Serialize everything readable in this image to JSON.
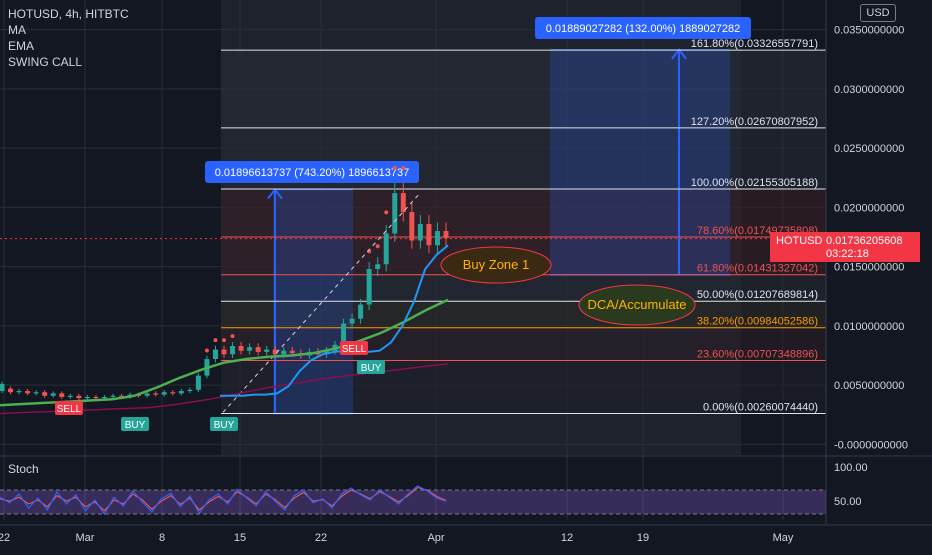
{
  "header": {
    "title": "HOTUSD, 4h, HITBTC",
    "indicators": [
      "MA",
      "EMA",
      "SWING CALL"
    ],
    "currency": "USD"
  },
  "price_tag": {
    "symbol": "HOTUSD",
    "price": "0.01736205608",
    "countdown": "03:22:18"
  },
  "colors": {
    "background": "#131722",
    "candle_up": "#26a69a",
    "candle_down": "#ef5350",
    "ma": "#26c6da",
    "ema": "#2962ff",
    "ema_long": "#4caf50",
    "fib_line": "#e0e3eb",
    "fib_red": "#ef5350",
    "fib_orange": "#ff9800",
    "measure_box": "#2962ff",
    "buy_zone": "#f23645",
    "stoch_fill": "#7e57c2"
  },
  "chart_data": {
    "type": "candlestick",
    "y_axis": {
      "ylim": [
        -0.0009,
        0.0375
      ],
      "tick_labels": [
        "0.0350000000",
        "0.0300000000",
        "0.0250000000",
        "0.0200000000",
        "0.0150000000",
        "0.0100000000",
        "0.0050000000",
        "-0.0000000000"
      ],
      "tick_values": [
        0.035,
        0.03,
        0.025,
        0.02,
        0.015,
        0.01,
        0.005,
        0
      ]
    },
    "x_axis": {
      "tick_labels": [
        "22",
        "Mar",
        "8",
        "15",
        "22",
        "Apr",
        "12",
        "19",
        "May"
      ]
    },
    "fib_levels": [
      {
        "label": "161.80%(0.03326557791)",
        "value": 0.03326557791,
        "color": "#e0e3eb"
      },
      {
        "label": "127.20%(0.02670807952)",
        "value": 0.02670807952,
        "color": "#e0e3eb"
      },
      {
        "label": "100.00%(0.02155305188)",
        "value": 0.02155305188,
        "color": "#e0e3eb"
      },
      {
        "label": "78.60%(0.01749735808)",
        "value": 0.01749735808,
        "color": "#ef5350"
      },
      {
        "label": "61.80%(0.01431327042)",
        "value": 0.01431327042,
        "color": "#ef5350"
      },
      {
        "label": "50.00%(0.01207689814)",
        "value": 0.01207689814,
        "color": "#e0e3eb"
      },
      {
        "label": "38.20%(0.00984052586)",
        "value": 0.00984052586,
        "color": "#ff9800"
      },
      {
        "label": "23.60%(0.00707348896)",
        "value": 0.00707348896,
        "color": "#ef5350"
      },
      {
        "label": "0.00%(0.00260074440)",
        "value": 0.0026007444,
        "color": "#e0e3eb"
      }
    ],
    "measures": [
      {
        "label": "0.01896613737 (743.20%) 1896613737",
        "from": 0.0026,
        "to": 0.0215
      },
      {
        "label": "0.01889027282 (132.00%) 1889027282",
        "from": 0.0143,
        "to": 0.0333
      }
    ],
    "annotations": {
      "zone1": "Buy Zone 1",
      "zone2": "DCA/Accumulate"
    },
    "signals": [
      {
        "label": "SELL",
        "kind": "sell"
      },
      {
        "label": "BUY",
        "kind": "buy"
      },
      {
        "label": "BUY",
        "kind": "buy"
      },
      {
        "label": "SELL",
        "kind": "sell"
      },
      {
        "label": "BUY",
        "kind": "buy"
      }
    ],
    "price_path": [
      [
        0.0045,
        0.0051
      ],
      [
        0.0047,
        0.0044
      ],
      [
        0.0044,
        0.0045
      ],
      [
        0.0045,
        0.0043
      ],
      [
        0.0043,
        0.0044
      ],
      [
        0.0044,
        0.0041
      ],
      [
        0.0041,
        0.0043
      ],
      [
        0.0043,
        0.004
      ],
      [
        0.004,
        0.0041
      ],
      [
        0.0041,
        0.0039
      ],
      [
        0.0039,
        0.004
      ],
      [
        0.004,
        0.0039
      ],
      [
        0.0039,
        0.004
      ],
      [
        0.004,
        0.0041
      ],
      [
        0.0041,
        0.004
      ],
      [
        0.004,
        0.0042
      ],
      [
        0.0042,
        0.0041
      ],
      [
        0.0041,
        0.0043
      ],
      [
        0.0043,
        0.0042
      ],
      [
        0.0042,
        0.0044
      ],
      [
        0.0044,
        0.0043
      ],
      [
        0.0043,
        0.0045
      ],
      [
        0.0045,
        0.0046
      ],
      [
        0.0046,
        0.0058
      ],
      [
        0.0058,
        0.0072
      ],
      [
        0.0072,
        0.008
      ],
      [
        0.008,
        0.0076
      ],
      [
        0.0076,
        0.0083
      ],
      [
        0.0083,
        0.0079
      ],
      [
        0.0079,
        0.0082
      ],
      [
        0.0082,
        0.0078
      ],
      [
        0.0078,
        0.008
      ],
      [
        0.008,
        0.0076
      ],
      [
        0.0076,
        0.0079
      ],
      [
        0.0079,
        0.0077
      ],
      [
        0.0077,
        0.0075
      ],
      [
        0.0075,
        0.0078
      ],
      [
        0.0078,
        0.0076
      ],
      [
        0.0076,
        0.0079
      ],
      [
        0.0079,
        0.0084
      ],
      [
        0.0084,
        0.0102
      ],
      [
        0.0102,
        0.0106
      ],
      [
        0.0106,
        0.0118
      ],
      [
        0.0118,
        0.0148
      ],
      [
        0.0148,
        0.0152
      ],
      [
        0.0152,
        0.0178
      ],
      [
        0.0178,
        0.0212
      ],
      [
        0.0212,
        0.0196
      ],
      [
        0.0196,
        0.0172
      ],
      [
        0.0172,
        0.0186
      ],
      [
        0.0186,
        0.0168
      ],
      [
        0.0168,
        0.018
      ],
      [
        0.018,
        0.0174
      ]
    ],
    "ma_path": [
      0.0041,
      0.0041,
      0.0041,
      0.0042,
      0.0042,
      0.0043,
      0.0049,
      0.0062,
      0.0071,
      0.0076,
      0.0078,
      0.0079,
      0.0078,
      0.0078,
      0.0079,
      0.0086,
      0.01,
      0.012,
      0.0148,
      0.016,
      0.0168
    ],
    "ema_path": [
      0.0033,
      0.0034,
      0.0035,
      0.0036,
      0.0037,
      0.0038,
      0.0041,
      0.0048,
      0.0056,
      0.0063,
      0.0069,
      0.0072,
      0.0074,
      0.0075,
      0.0077,
      0.0081,
      0.0087,
      0.0094,
      0.0103,
      0.0113,
      0.0122
    ],
    "long_ma_path": [
      0.0026,
      0.0027,
      0.0028,
      0.0029,
      0.003,
      0.0031,
      0.0034,
      0.0038,
      0.0043,
      0.0048,
      0.0052,
      0.0056,
      0.0059,
      0.0062,
      0.0065,
      0.0068
    ],
    "stochastic": {
      "title": "Stoch",
      "tick_labels": [
        "100.00",
        "50.00"
      ],
      "upper": 80,
      "lower": 20,
      "ylim": [
        0,
        110
      ],
      "k": [
        62,
        48,
        70,
        35,
        60,
        30,
        75,
        45,
        68,
        28,
        55,
        20,
        62,
        40,
        78,
        50,
        25,
        58,
        72,
        38,
        65,
        22,
        55,
        70,
        45,
        82,
        60,
        40,
        76,
        52,
        30,
        66,
        80,
        48,
        58,
        35,
        70,
        85,
        68,
        55,
        80,
        62,
        45,
        70,
        90,
        78,
        60,
        52
      ],
      "d": [
        58,
        52,
        62,
        45,
        55,
        38,
        66,
        52,
        62,
        38,
        50,
        28,
        55,
        45,
        70,
        55,
        32,
        52,
        66,
        44,
        60,
        30,
        50,
        64,
        50,
        76,
        62,
        45,
        70,
        56,
        36,
        60,
        74,
        52,
        56,
        40,
        64,
        80,
        70,
        58,
        76,
        64,
        50,
        66,
        86,
        80,
        64,
        54
      ]
    }
  }
}
